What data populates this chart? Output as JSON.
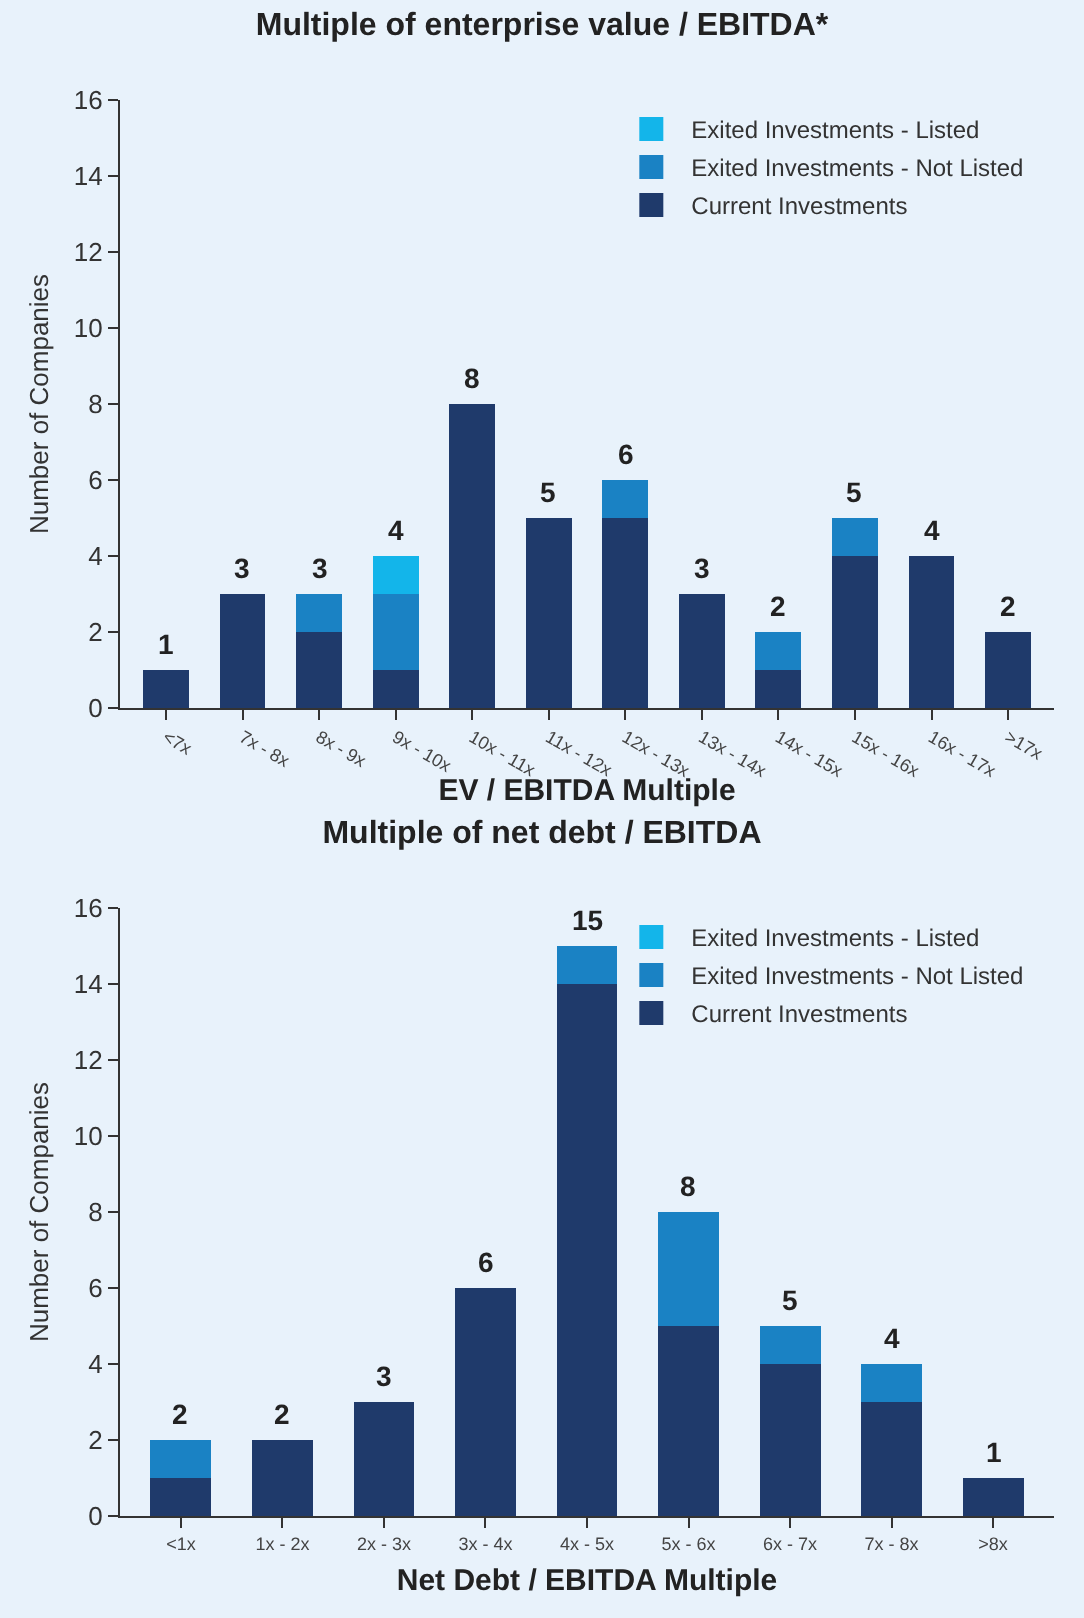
{
  "chart_data": [
    {
      "type": "bar",
      "title": "Multiple of enterprise value / EBITDA*",
      "xlabel": "EV / EBITDA Multiple",
      "ylabel": "Number of Companies",
      "stacked": true,
      "categories": [
        "<7x",
        "7x - 8x",
        "8x - 9x",
        "9x - 10x",
        "10x - 11x",
        "11x - 12x",
        "12x - 13x",
        "13x - 14x",
        "14x - 15x",
        "15x - 16x",
        "16x - 17x",
        ">17x"
      ],
      "series": [
        {
          "name": "Current Investments",
          "color": "#1f3a6b",
          "values": [
            1,
            3,
            2,
            1,
            8,
            5,
            5,
            3,
            1,
            4,
            4,
            2
          ]
        },
        {
          "name": "Exited Investments - Not Listed",
          "color": "#1a82c4",
          "values": [
            0,
            0,
            1,
            2,
            0,
            0,
            1,
            0,
            1,
            1,
            0,
            0
          ]
        },
        {
          "name": "Exited Investments - Listed",
          "color": "#13b5ea",
          "values": [
            0,
            0,
            0,
            1,
            0,
            0,
            0,
            0,
            0,
            0,
            0,
            0
          ]
        }
      ],
      "totals": [
        "1",
        "3",
        "3",
        "4",
        "8",
        "5",
        "6",
        "3",
        "2",
        "5",
        "4",
        "2"
      ],
      "ylim": [
        0,
        16
      ],
      "yticks": [
        0,
        2,
        4,
        6,
        8,
        10,
        12,
        14,
        16
      ],
      "grid": false,
      "legend": "top right"
    },
    {
      "type": "bar",
      "title": "Multiple of net debt / EBITDA",
      "xlabel": "Net Debt / EBITDA Multiple",
      "ylabel": "Number of Companies",
      "stacked": true,
      "categories": [
        "<1x",
        "1x - 2x",
        "2x - 3x",
        "3x - 4x",
        "4x - 5x",
        "5x - 6x",
        "6x - 7x",
        "7x - 8x",
        ">8x"
      ],
      "series": [
        {
          "name": "Current Investments",
          "color": "#1f3a6b",
          "values": [
            1,
            2,
            3,
            6,
            14,
            5,
            4,
            3,
            1
          ]
        },
        {
          "name": "Exited Investments - Not Listed",
          "color": "#1a82c4",
          "values": [
            1,
            0,
            0,
            0,
            1,
            3,
            1,
            1,
            0
          ]
        },
        {
          "name": "Exited Investments - Listed",
          "color": "#13b5ea",
          "values": [
            0,
            0,
            0,
            0,
            0,
            0,
            0,
            0,
            0
          ]
        }
      ],
      "totals": [
        "2",
        "2",
        "3",
        "6",
        "15",
        "8",
        "5",
        "4",
        "1"
      ],
      "ylim": [
        0,
        16
      ],
      "yticks": [
        0,
        2,
        4,
        6,
        8,
        10,
        12,
        14,
        16
      ],
      "grid": false,
      "legend": "top right"
    }
  ]
}
